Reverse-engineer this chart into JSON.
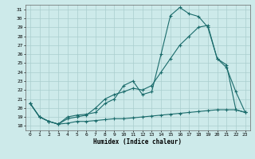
{
  "xlabel": "Humidex (Indice chaleur)",
  "ylabel": "",
  "xlim": [
    -0.5,
    23.5
  ],
  "ylim": [
    17.5,
    31.5
  ],
  "xticks": [
    0,
    1,
    2,
    3,
    4,
    5,
    6,
    7,
    8,
    9,
    10,
    11,
    12,
    13,
    14,
    15,
    16,
    17,
    18,
    19,
    20,
    21,
    22,
    23
  ],
  "yticks": [
    18,
    19,
    20,
    21,
    22,
    23,
    24,
    25,
    26,
    27,
    28,
    29,
    30,
    31
  ],
  "bg_color": "#cdeaea",
  "grid_color": "#aacece",
  "line_color": "#1a6b6b",
  "line1_x": [
    0,
    1,
    2,
    3,
    4,
    5,
    6,
    7,
    8,
    9,
    10,
    11,
    12,
    13,
    14,
    15,
    16,
    17,
    18,
    19,
    20,
    21,
    22,
    23
  ],
  "line1_y": [
    20.5,
    19.0,
    18.5,
    18.2,
    19.0,
    19.2,
    19.3,
    19.5,
    20.5,
    21.0,
    22.5,
    23.0,
    21.5,
    21.8,
    26.0,
    30.3,
    31.2,
    30.5,
    30.2,
    29.0,
    25.5,
    24.8,
    19.8,
    19.5
  ],
  "line2_x": [
    0,
    1,
    2,
    3,
    4,
    5,
    6,
    7,
    8,
    9,
    10,
    11,
    12,
    13,
    14,
    15,
    16,
    17,
    18,
    19,
    20,
    21,
    22,
    23
  ],
  "line2_y": [
    20.5,
    19.0,
    18.5,
    18.2,
    18.8,
    19.0,
    19.2,
    20.0,
    21.0,
    21.5,
    21.8,
    22.2,
    22.0,
    22.5,
    24.0,
    25.5,
    27.0,
    28.0,
    29.0,
    29.2,
    25.5,
    24.5,
    21.8,
    19.5
  ],
  "line3_x": [
    0,
    1,
    2,
    3,
    4,
    5,
    6,
    7,
    8,
    9,
    10,
    11,
    12,
    13,
    14,
    15,
    16,
    17,
    18,
    19,
    20,
    21,
    22,
    23
  ],
  "line3_y": [
    20.5,
    19.0,
    18.5,
    18.2,
    18.3,
    18.5,
    18.5,
    18.6,
    18.7,
    18.8,
    18.8,
    18.9,
    19.0,
    19.1,
    19.2,
    19.3,
    19.4,
    19.5,
    19.6,
    19.7,
    19.8,
    19.8,
    19.8,
    19.5
  ]
}
